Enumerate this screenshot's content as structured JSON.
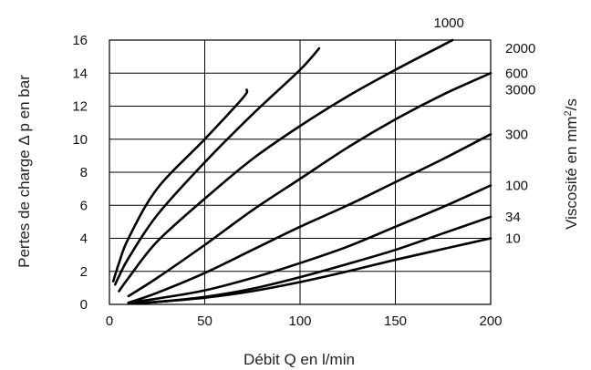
{
  "chart_data": {
    "type": "line",
    "title": "",
    "xlabel": "Débit Q en l/min",
    "ylabel": "Pertes de charge Δ p en bar",
    "y2label_parts": {
      "prefix": "Viscosité en mm",
      "sup": "2",
      "suffix": "/s"
    },
    "xlim": [
      0,
      200
    ],
    "ylim": [
      0,
      16
    ],
    "x_ticks": [
      "0",
      "50",
      "100",
      "150",
      "200"
    ],
    "y_ticks": [
      "0",
      "2",
      "4",
      "6",
      "8",
      "10",
      "12",
      "14",
      "16"
    ],
    "grid": true,
    "series": [
      {
        "name": "10",
        "x": [
          10,
          25,
          50,
          75,
          100,
          125,
          150,
          175,
          200
        ],
        "y": [
          0.05,
          0.15,
          0.4,
          0.8,
          1.35,
          2.0,
          2.7,
          3.35,
          4.0
        ]
      },
      {
        "name": "34",
        "x": [
          10,
          25,
          50,
          75,
          100,
          125,
          150,
          175,
          200
        ],
        "y": [
          0.05,
          0.15,
          0.45,
          0.95,
          1.65,
          2.45,
          3.3,
          4.3,
          5.3
        ]
      },
      {
        "name": "100",
        "x": [
          10,
          25,
          50,
          75,
          100,
          125,
          150,
          175,
          200
        ],
        "y": [
          0.1,
          0.35,
          0.85,
          1.6,
          2.5,
          3.5,
          4.7,
          5.9,
          7.2
        ]
      },
      {
        "name": "300",
        "x": [
          10,
          25,
          50,
          75,
          100,
          125,
          150,
          175,
          200
        ],
        "y": [
          0.1,
          0.7,
          1.9,
          3.3,
          4.7,
          6.0,
          7.4,
          8.8,
          10.3
        ]
      },
      {
        "name": "600",
        "x": [
          10,
          25,
          50,
          75,
          100,
          125,
          150,
          175,
          200
        ],
        "y": [
          0.5,
          1.6,
          3.6,
          5.7,
          7.6,
          9.5,
          11.2,
          12.7,
          14.0
        ]
      },
      {
        "name": "1000",
        "x": [
          5,
          10,
          25,
          50,
          75,
          100,
          125,
          150,
          175,
          180
        ],
        "y": [
          0.8,
          1.6,
          3.8,
          6.4,
          8.8,
          10.8,
          12.6,
          14.2,
          15.7,
          16.0
        ]
      },
      {
        "name": "2000",
        "x": [
          3,
          5,
          10,
          25,
          50,
          75,
          100,
          110
        ],
        "y": [
          1.2,
          1.7,
          2.8,
          5.4,
          8.6,
          11.5,
          14.2,
          15.5
        ]
      },
      {
        "name": "3000",
        "x": [
          2,
          5,
          10,
          25,
          50,
          70,
          72
        ],
        "y": [
          1.4,
          2.5,
          4.0,
          7.0,
          10.0,
          12.5,
          13.0
        ]
      }
    ],
    "curve_labels": [
      "3000",
      "2000",
      "1000",
      "600",
      "300",
      "100",
      "34",
      "10"
    ]
  }
}
